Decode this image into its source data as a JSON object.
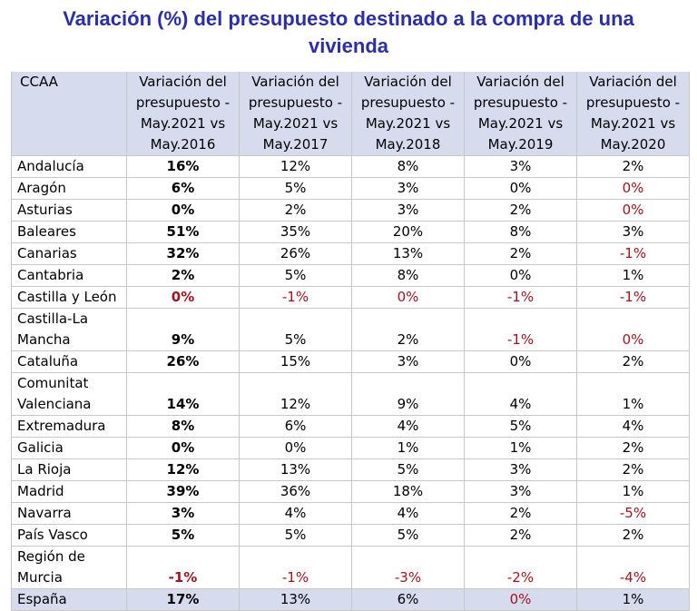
{
  "title": {
    "line1": "Variación (%) del presupuesto destinado a la compra de una",
    "line2": "vivienda"
  },
  "table": {
    "corner": "CCAA",
    "columns": [
      "Variación del presupuesto - May.2021 vs May.2016",
      "Variación del presupuesto - May.2021 vs May.2017",
      "Variación del presupuesto - May.2021 vs May.2018",
      "Variación del presupuesto - May.2021 vs May.2019",
      "Variación del presupuesto - May.2021 vs May.2020"
    ],
    "rows": [
      {
        "name": "Andalucía",
        "v": [
          "16%",
          "12%",
          "8%",
          "3%",
          "2%"
        ]
      },
      {
        "name": "Aragón",
        "v": [
          "6%",
          "5%",
          "3%",
          "0%",
          "0%"
        ]
      },
      {
        "name": "Asturias",
        "v": [
          "0%",
          "2%",
          "3%",
          "2%",
          "0%"
        ]
      },
      {
        "name": "Baleares",
        "v": [
          "51%",
          "35%",
          "20%",
          "8%",
          "3%"
        ]
      },
      {
        "name": "Canarias",
        "v": [
          "32%",
          "26%",
          "13%",
          "2%",
          "-1%"
        ]
      },
      {
        "name": "Cantabria",
        "v": [
          "2%",
          "5%",
          "8%",
          "0%",
          "1%"
        ]
      },
      {
        "name": "Castilla y León",
        "v": [
          "0%",
          "-1%",
          "0%",
          "-1%",
          "-1%"
        ]
      },
      {
        "name": "Castilla-La Mancha",
        "v": [
          "9%",
          "5%",
          "2%",
          "-1%",
          "0%"
        ]
      },
      {
        "name": "Cataluña",
        "v": [
          "26%",
          "15%",
          "3%",
          "0%",
          "2%"
        ]
      },
      {
        "name": "Comunitat Valenciana",
        "v": [
          "14%",
          "12%",
          "9%",
          "4%",
          "1%"
        ]
      },
      {
        "name": "Extremadura",
        "v": [
          "8%",
          "6%",
          "4%",
          "5%",
          "4%"
        ]
      },
      {
        "name": "Galicia",
        "v": [
          "0%",
          "0%",
          "1%",
          "1%",
          "2%"
        ]
      },
      {
        "name": "La Rioja",
        "v": [
          "12%",
          "13%",
          "5%",
          "3%",
          "2%"
        ]
      },
      {
        "name": "Madrid",
        "v": [
          "39%",
          "36%",
          "18%",
          "3%",
          "1%"
        ]
      },
      {
        "name": "Navarra",
        "v": [
          "3%",
          "4%",
          "4%",
          "2%",
          "-5%"
        ]
      },
      {
        "name": "País Vasco",
        "v": [
          "5%",
          "5%",
          "5%",
          "2%",
          "2%"
        ]
      },
      {
        "name": "Región de Murcia",
        "v": [
          "-1%",
          "-1%",
          "-3%",
          "-2%",
          "-4%"
        ]
      },
      {
        "name": "España",
        "v": [
          "17%",
          "13%",
          "6%",
          "0%",
          "1%"
        ]
      }
    ],
    "red_cells": [
      [
        1,
        4
      ],
      [
        2,
        4
      ],
      [
        4,
        4
      ],
      [
        6,
        0
      ],
      [
        6,
        1
      ],
      [
        6,
        2
      ],
      [
        6,
        3
      ],
      [
        6,
        4
      ],
      [
        7,
        3
      ],
      [
        7,
        4
      ],
      [
        14,
        4
      ],
      [
        16,
        0
      ],
      [
        16,
        1
      ],
      [
        16,
        2
      ],
      [
        16,
        3
      ],
      [
        16,
        4
      ],
      [
        17,
        3
      ]
    ]
  },
  "colors": {
    "title": "#2b2ea8",
    "header_bg": "#d6dcee",
    "negative": "#a0141e",
    "border": "#c7c7c7"
  }
}
